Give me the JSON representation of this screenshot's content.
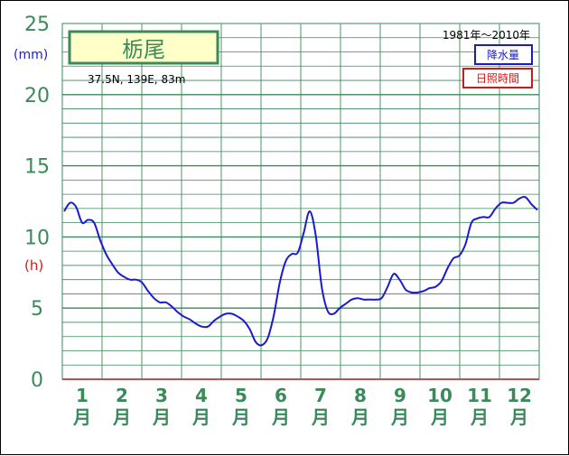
{
  "chart_data": {
    "type": "line",
    "title": "栃尾",
    "location": "37.5N,  139E,  83m",
    "period": "1981年〜2010年",
    "legend": [
      "降水量",
      "日照時間"
    ],
    "y_unit_top": "(mm)",
    "y_unit_mid": "(h)",
    "yticks": [
      "0",
      "5",
      "10",
      "15",
      "20",
      "25"
    ],
    "ylim": [
      0,
      25
    ],
    "months": [
      {
        "num": "1",
        "label": "月"
      },
      {
        "num": "2",
        "label": "月"
      },
      {
        "num": "3",
        "label": "月"
      },
      {
        "num": "4",
        "label": "月"
      },
      {
        "num": "5",
        "label": "月"
      },
      {
        "num": "6",
        "label": "月"
      },
      {
        "num": "7",
        "label": "月"
      },
      {
        "num": "8",
        "label": "月"
      },
      {
        "num": "9",
        "label": "月"
      },
      {
        "num": "10",
        "label": "月"
      },
      {
        "num": "11",
        "label": "月"
      },
      {
        "num": "12",
        "label": "月"
      }
    ],
    "series_color": "#1a1ad0",
    "precip_values": [
      11.8,
      12.4,
      12.1,
      11.0,
      11.2,
      11.0,
      9.8,
      8.8,
      8.1,
      7.5,
      7.2,
      7.0,
      7.0,
      6.8,
      6.2,
      5.7,
      5.4,
      5.4,
      5.1,
      4.7,
      4.4,
      4.2,
      3.9,
      3.7,
      3.7,
      4.1,
      4.4,
      4.6,
      4.6,
      4.4,
      4.1,
      3.5,
      2.6,
      2.4,
      2.9,
      4.5,
      6.8,
      8.3,
      8.8,
      8.9,
      10.3,
      11.8,
      10.1,
      6.5,
      4.8,
      4.6,
      5.0,
      5.3,
      5.6,
      5.7,
      5.6,
      5.6,
      5.6,
      5.7,
      6.5,
      7.4,
      7.0,
      6.3,
      6.1,
      6.1,
      6.2,
      6.4,
      6.5,
      6.9,
      7.8,
      8.5,
      8.7,
      9.5,
      11.0,
      11.3,
      11.4,
      11.4,
      12.0,
      12.4,
      12.4,
      12.4,
      12.7,
      12.8,
      12.3,
      11.9
    ],
    "grid": true
  }
}
